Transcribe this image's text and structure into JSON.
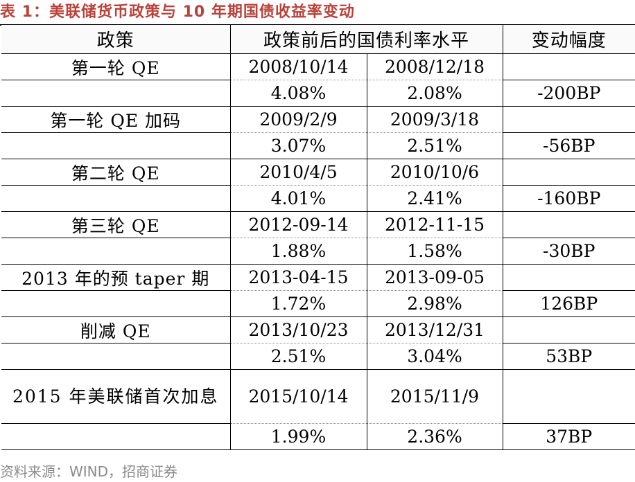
{
  "title": "表 1：美联储货币政策与 10 年期国债收益率变动",
  "table": {
    "headers": [
      "政策",
      "政策前后的国债利率水平",
      "变动幅度"
    ],
    "rows": [
      {
        "policy": "第一轮 QE",
        "date_before": "2008/10/14",
        "date_after": "2008/12/18",
        "rate_before": "4.08%",
        "rate_after": "2.08%",
        "change": "-200BP"
      },
      {
        "policy": "第一轮 QE 加码",
        "date_before": "2009/2/9",
        "date_after": "2009/3/18",
        "rate_before": "3.07%",
        "rate_after": "2.51%",
        "change": "-56BP"
      },
      {
        "policy": "第二轮 QE",
        "date_before": "2010/4/5",
        "date_after": "2010/10/6",
        "rate_before": "4.01%",
        "rate_after": "2.41%",
        "change": "-160BP"
      },
      {
        "policy": "第三轮 QE",
        "date_before": "2012-09-14",
        "date_after": "2012-11-15",
        "rate_before": "1.88%",
        "rate_after": "1.58%",
        "change": "-30BP"
      },
      {
        "policy": "2013 年的预 taper 期",
        "date_before": "2013-04-15",
        "date_after": "2013-09-05",
        "rate_before": "1.72%",
        "rate_after": "2.98%",
        "change": "126BP"
      },
      {
        "policy": "削减 QE",
        "date_before": "2013/10/23",
        "date_after": "2013/12/31",
        "rate_before": "2.51%",
        "rate_after": "3.04%",
        "change": "53BP"
      },
      {
        "policy": "2015 年美联储首次加息",
        "date_before": "2015/10/14",
        "date_after": "2015/11/9",
        "rate_before": "1.99%",
        "rate_after": "2.36%",
        "change": "37BP"
      }
    ]
  },
  "source": "资料来源：WIND，招商证券"
}
